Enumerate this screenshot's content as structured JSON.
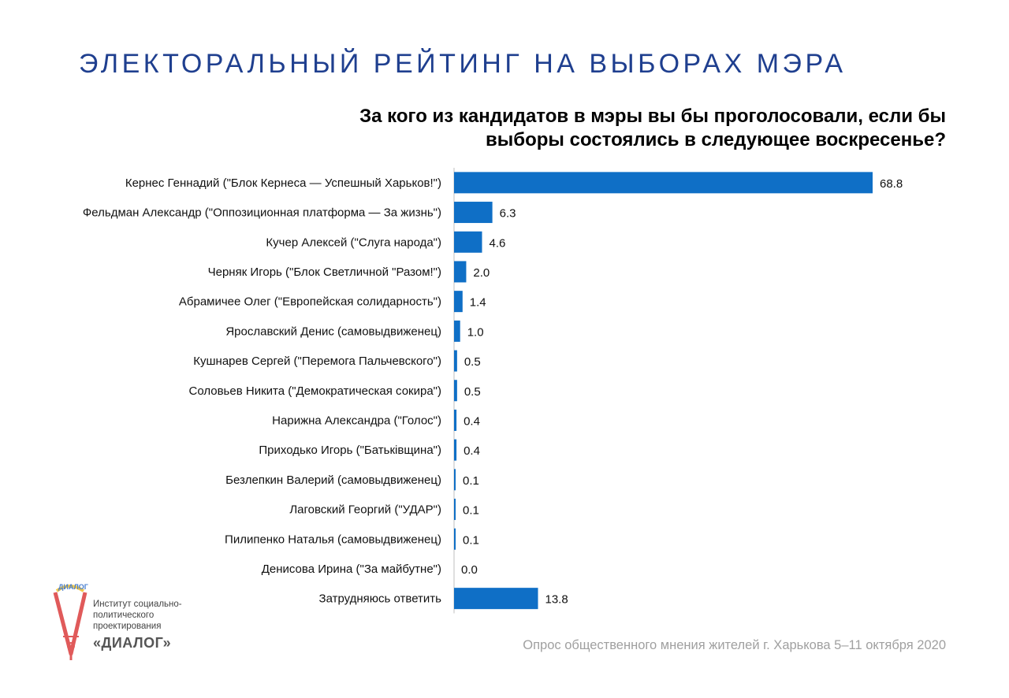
{
  "page": {
    "title": "ЭЛЕКТОРАЛЬНЫЙ РЕЙТИНГ НА ВЫБОРАХ МЭРА",
    "question_line1": "За кого из кандидатов в мэры вы бы проголосовали, если бы",
    "question_line2": "выборы состоялись в следующее воскресенье?",
    "footer": "Опрос общественного мнения жителей г. Харькова 5–11 октября 2020",
    "logo": {
      "arc_text": "ДИАЛОГ",
      "line1": "Институт социально-",
      "line2": "политического",
      "line3": "проектирования",
      "name": "«ДИАЛОГ»"
    }
  },
  "colors": {
    "bar": "#0f6fc6",
    "title": "#1f3f8f",
    "axis": "#bfbfbf"
  },
  "chart_data": {
    "type": "bar",
    "orientation": "horizontal",
    "title": "За кого из кандидатов в мэры вы бы проголосовали, если бы выборы состоялись в следующее воскресенье?",
    "categories": [
      "Кернес Геннадий (\"Блок Кернеса — Успешный Харьков!\")",
      "Фельдман Александр (\"Оппозиционная платформа — За жизнь\")",
      "Кучер Алексей (\"Слуга народа\")",
      "Черняк Игорь (\"Блок Светличной \"Разом!\")",
      "Абрамичее Олег (\"Европейская солидарность\")",
      "Ярославский Денис (самовыдвиженец)",
      "Кушнарев Сергей (\"Перемога Пальчевского\")",
      "Соловьев Никита (\"Демократическая сокира\")",
      "Нарижна Александра (\"Голос\")",
      "Приходько Игорь (\"Батьківщина\")",
      "Безлепкин Валерий (самовыдвиженец)",
      "Лаговский Георгий (\"УДАР\")",
      "Пилипенко Наталья (самовыдвиженец)",
      "Денисова Ирина (\"За майбутне\")",
      "Затрудняюсь ответить"
    ],
    "values": [
      68.8,
      6.3,
      4.6,
      2.0,
      1.4,
      1.0,
      0.5,
      0.5,
      0.4,
      0.4,
      0.1,
      0.1,
      0.1,
      0.0,
      13.8
    ],
    "value_labels": [
      "68.8",
      "6.3",
      "4.6",
      "2.0",
      "1.4",
      "1.0",
      "0.5",
      "0.5",
      "0.4",
      "0.4",
      "0.1",
      "0.1",
      "0.1",
      "0.0",
      "13.8"
    ],
    "xlim": [
      0,
      70
    ],
    "grid": false,
    "legend": "none"
  }
}
